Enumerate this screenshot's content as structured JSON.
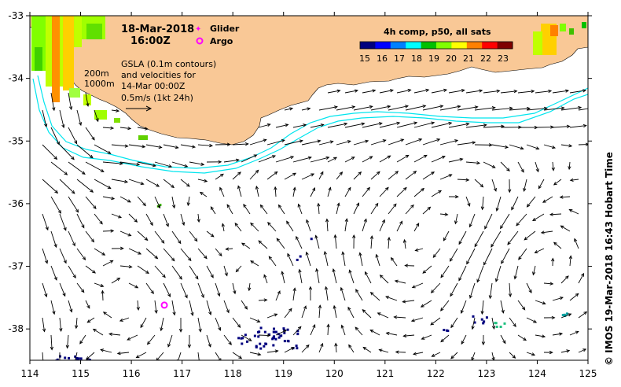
{
  "title": {
    "date": "18-Mar-2018",
    "time": "16:00Z"
  },
  "legend": {
    "glider_label": "Glider",
    "argo_label": "Argo",
    "glider_color": "#ff00ff",
    "argo_color": "#ff00ff"
  },
  "annotation": {
    "line1": "GSLA (0.1m contours)",
    "line2": "and velocities for",
    "line3": "14-Mar 00:00Z",
    "line4": "0.5m/s (1kt 24h)",
    "contour_200": "200m",
    "contour_1000": "1000m"
  },
  "colorbar": {
    "title": "4h comp, p50, all sats",
    "ticks": [
      "15",
      "16",
      "17",
      "18",
      "19",
      "20",
      "21",
      "22",
      "23"
    ],
    "colors": [
      "#00007f",
      "#0000ff",
      "#0080ff",
      "#00ffff",
      "#00c000",
      "#80ff00",
      "#ffff00",
      "#ff8000",
      "#ff0000",
      "#7f0000"
    ]
  },
  "axes": {
    "x_ticks": [
      "114",
      "115",
      "116",
      "117",
      "118",
      "119",
      "120",
      "121",
      "122",
      "123",
      "124",
      "125"
    ],
    "y_ticks": [
      "-33",
      "-34",
      "-35",
      "-36",
      "-37",
      "-38"
    ],
    "x_range": [
      114,
      125
    ],
    "y_range": [
      -38.5,
      -33
    ]
  },
  "argo_position": {
    "lon": 116.65,
    "lat": -37.62
  },
  "credit": "© IMOS 19-Mar-2018 16:43 Hobart Time",
  "colors": {
    "land": "#f9c896",
    "isobath": "#00e5ee",
    "arrow": "#000000",
    "ocean": "#ffffff"
  }
}
